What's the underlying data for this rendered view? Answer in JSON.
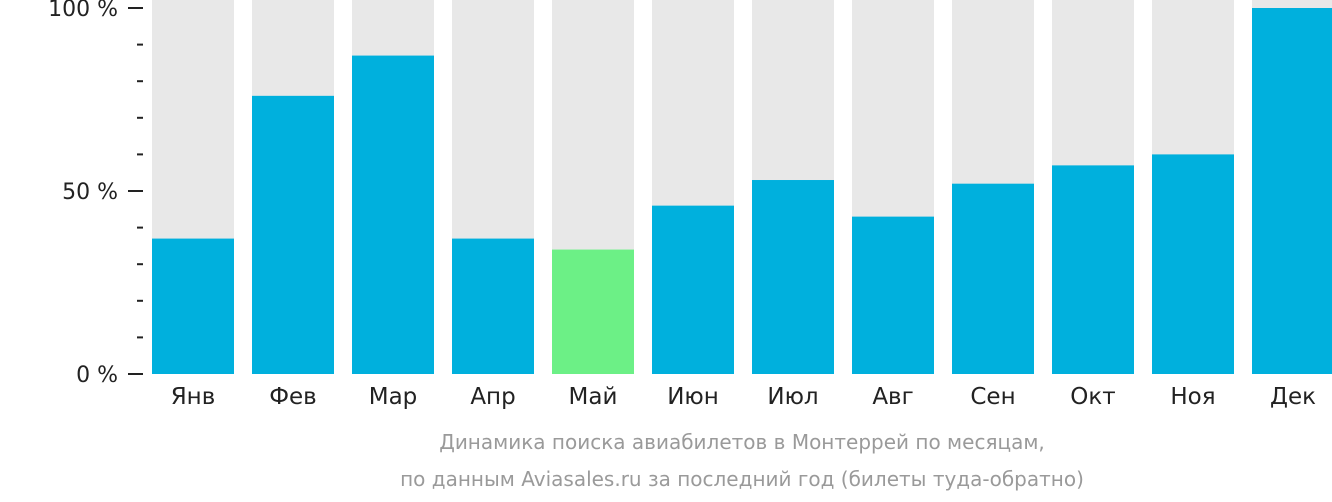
{
  "colors": {
    "bar": "#00b0dd",
    "bar_highlight": "#6cf086",
    "background_bar": "#e8e8e8",
    "axis": "#222222",
    "caption": "#9a9a9a"
  },
  "caption": {
    "line1": "Динамика поиска авиабилетов в Монтеррей по месяцам,",
    "line2": "по данным Aviasales.ru за последний год (билеты туда-обратно)"
  },
  "chart_data": {
    "type": "bar",
    "categories": [
      "Янв",
      "Фев",
      "Мар",
      "Апр",
      "Май",
      "Июн",
      "Июл",
      "Авг",
      "Сен",
      "Окт",
      "Ноя",
      "Дек"
    ],
    "values": [
      37,
      76,
      87,
      37,
      34,
      46,
      53,
      43,
      52,
      57,
      60,
      100
    ],
    "highlight_index": 4,
    "ylim": [
      0,
      100
    ],
    "y_ticks": [
      {
        "value": 100,
        "label": "100 %"
      },
      {
        "value": 50,
        "label": "50 %"
      },
      {
        "value": 0,
        "label": "0 %"
      }
    ],
    "minor_ticks": [
      10,
      20,
      30,
      40,
      60,
      70,
      80,
      90
    ],
    "grid": false,
    "legend": "none"
  }
}
